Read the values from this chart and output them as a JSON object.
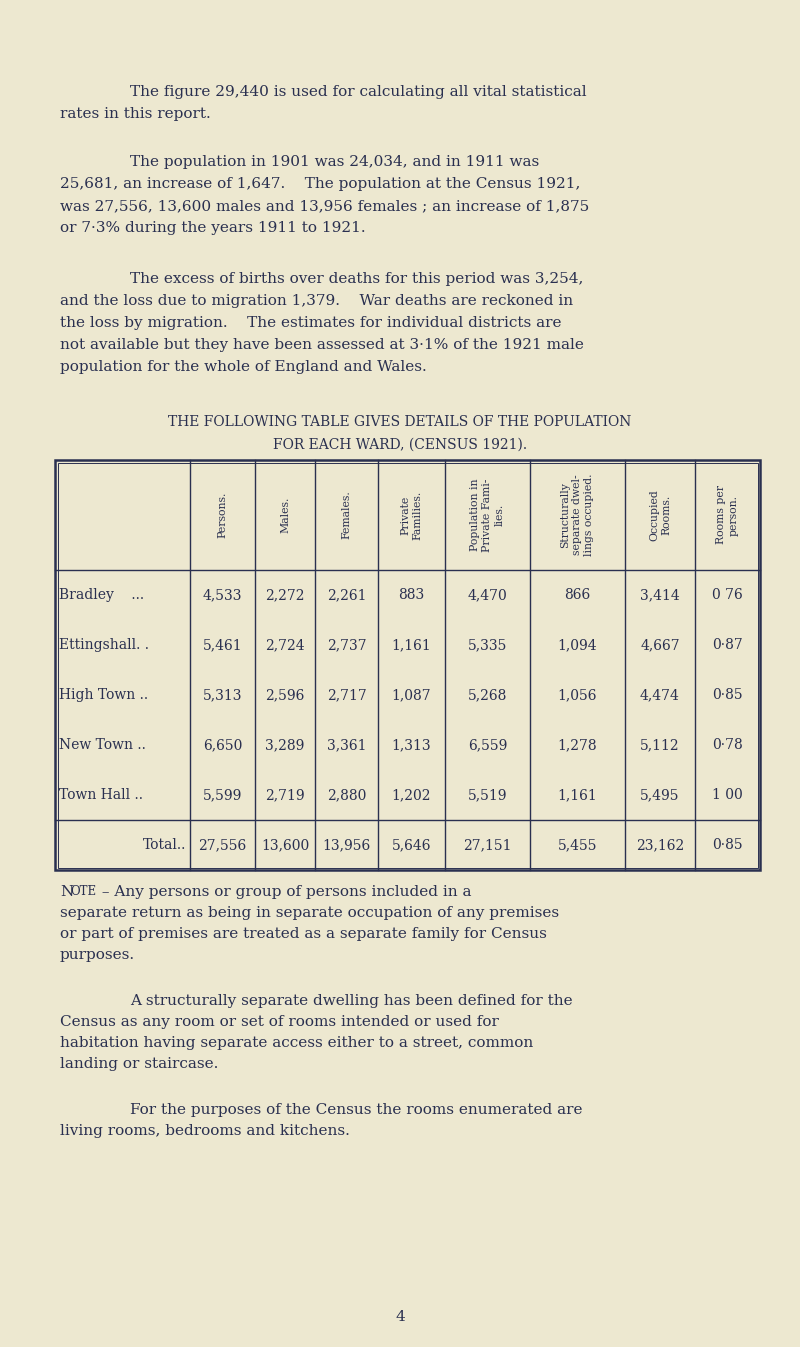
{
  "bg_color": "#ede8d0",
  "text_color": "#2a3050",
  "para1_indent": "        The figure 29,440 is used for calculating all vital statistical",
  "para1_line2": "rates in this report.",
  "para2_line1": "        The population in 1901 was 24,034, and in 1911 was",
  "para2_line2": "25,681, an increase of 1,647.    The population at the Census 1921,",
  "para2_line3": "was 27,556, 13,600 males and 13,956 females ; an increase of 1,875",
  "para2_line4": "or 7·3% during the years 1911 to 1921.",
  "para3_line1": "        The excess of births over deaths for this period was 3,254,",
  "para3_line2": "and the loss due to migration 1,379.    War deaths are reckoned in",
  "para3_line3": "the loss by migration.    The estimates for individual districts are",
  "para3_line4": "not available but they have been assessed at 3·1% of the 1921 male",
  "para3_line5": "population for the whole of England and Wales.",
  "table_title1": "THE FOLLOWING TABLE GIVES DETAILS OF THE POPULATION",
  "table_title2": "FOR EACH WARD, (CENSUS 1921).",
  "col_headers": [
    "Persons.",
    "Males.",
    "Females.",
    "Private\nFamilies.",
    "Population in\nPrivate Fami-\nlies.",
    "Structurally\nseparate dwel-\nlings occupied.",
    "Occupied\nRooms.",
    "Rooms per\nperson."
  ],
  "row_labels": [
    "Bradley    ...",
    "Ettingshall. .",
    "High Town ..",
    "New Town ..",
    "Town Hall ..",
    "Total.."
  ],
  "table_data": [
    [
      "4,533",
      "2,272",
      "2,261",
      "883",
      "4,470",
      "866",
      "3,414",
      "0 76"
    ],
    [
      "5,461",
      "2,724",
      "2,737",
      "1,161",
      "5,335",
      "1,094",
      "4,667",
      "0·87"
    ],
    [
      "5,313",
      "2,596",
      "2,717",
      "1,087",
      "5,268",
      "1,056",
      "4,474",
      "0·85"
    ],
    [
      "6,650",
      "3,289",
      "3,361",
      "1,313",
      "6,559",
      "1,278",
      "5,112",
      "0·78"
    ],
    [
      "5,599",
      "2,719",
      "2,880",
      "1,202",
      "5,519",
      "1,161",
      "5,495",
      "1 00"
    ],
    [
      "27,556",
      "13,600",
      "13,956",
      "5,646",
      "27,151",
      "5,455",
      "23,162",
      "0·85"
    ]
  ],
  "note_label": "Note",
  "note1_rest": " – Any persons or group of persons included in a",
  "note1_line2": "separate return as being in separate occupation of any premises",
  "note1_line3": "or part of premises are treated as a separate family for Census",
  "note1_line4": "purposes.",
  "note2_indent": "        A structurally separate dwelling has been defined for the",
  "note2_line2": "Census as any room or set of rooms intended or used for",
  "note2_line3": "habitation having separate access either to a street, common",
  "note2_line4": "landing or staircase.",
  "note3_indent": "        For the purposes of the Census the rooms enumerated are",
  "note3_line2": "living rooms, bedrooms and kitchens.",
  "page_number": "4"
}
